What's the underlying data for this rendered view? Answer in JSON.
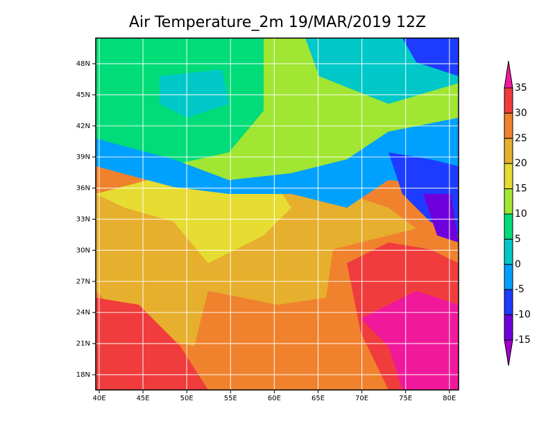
{
  "map": {
    "title": "Air Temperature_2m 19/MAR/2019 12Z",
    "lon_labels": [
      "40E",
      "45E",
      "50E",
      "55E",
      "60E",
      "65E",
      "70E",
      "75E",
      "80E"
    ],
    "lat_labels": [
      "48N",
      "45N",
      "42N",
      "39N",
      "36N",
      "33N",
      "30N",
      "27N",
      "24N",
      "21N",
      "18N"
    ],
    "colorbar": {
      "labels": [
        35,
        30,
        25,
        20,
        15,
        10,
        5,
        0,
        -5,
        -10,
        -15
      ],
      "colors": [
        "#f0199b",
        "#f03c3c",
        "#f0822d",
        "#e6af2d",
        "#e6dc32",
        "#a0e632",
        "#00dc78",
        "#00c8c8",
        "#00a0ff",
        "#1e3cff",
        "#6e00dc",
        "#a000c8"
      ]
    }
  }
}
